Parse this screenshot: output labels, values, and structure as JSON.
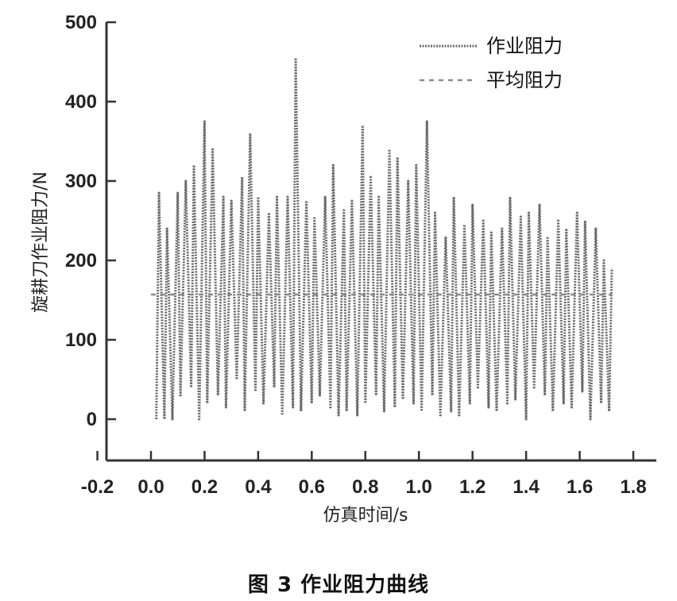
{
  "chart_data": {
    "type": "line",
    "xlabel": "仿真时间/s",
    "ylabel": "旋耕刀作业阻力/N",
    "xlim": [
      -0.2,
      1.9
    ],
    "ylim": [
      -50,
      500
    ],
    "x_ticks": [
      "-0.2",
      "0.0",
      "0.2",
      "0.4",
      "0.6",
      "0.8",
      "1.0",
      "1.2",
      "1.4",
      "1.6",
      "1.8"
    ],
    "x_tick_values": [
      -0.2,
      0.0,
      0.2,
      0.4,
      0.6,
      0.8,
      1.0,
      1.2,
      1.4,
      1.6,
      1.8
    ],
    "y_ticks": [
      "0",
      "100",
      "200",
      "300",
      "400",
      "500"
    ],
    "y_tick_values": [
      0,
      100,
      200,
      300,
      400,
      500
    ],
    "grid": false,
    "legend_position": "top-right",
    "series": [
      {
        "name": "作业阻力",
        "style": "solid-hatched",
        "x": [
          0.02,
          0.03,
          0.05,
          0.06,
          0.08,
          0.1,
          0.11,
          0.13,
          0.15,
          0.16,
          0.18,
          0.2,
          0.21,
          0.23,
          0.25,
          0.27,
          0.28,
          0.3,
          0.32,
          0.34,
          0.35,
          0.37,
          0.39,
          0.4,
          0.42,
          0.44,
          0.46,
          0.47,
          0.49,
          0.51,
          0.53,
          0.54,
          0.56,
          0.58,
          0.6,
          0.61,
          0.63,
          0.65,
          0.67,
          0.68,
          0.7,
          0.72,
          0.73,
          0.75,
          0.77,
          0.79,
          0.8,
          0.82,
          0.84,
          0.85,
          0.87,
          0.89,
          0.91,
          0.92,
          0.94,
          0.96,
          0.98,
          0.99,
          1.01,
          1.03,
          1.05,
          1.06,
          1.08,
          1.1,
          1.12,
          1.13,
          1.15,
          1.17,
          1.19,
          1.2,
          1.22,
          1.24,
          1.26,
          1.27,
          1.29,
          1.31,
          1.33,
          1.34,
          1.36,
          1.38,
          1.4,
          1.41,
          1.43,
          1.45,
          1.47,
          1.48,
          1.5,
          1.52,
          1.54,
          1.55,
          1.57,
          1.59,
          1.61,
          1.62,
          1.64,
          1.66,
          1.68,
          1.69,
          1.71,
          1.72
        ],
        "y": [
          0,
          285,
          0,
          240,
          0,
          285,
          30,
          300,
          40,
          320,
          0,
          375,
          20,
          340,
          30,
          280,
          15,
          275,
          50,
          305,
          10,
          360,
          35,
          280,
          20,
          260,
          40,
          280,
          5,
          280,
          15,
          455,
          10,
          275,
          20,
          255,
          30,
          280,
          15,
          320,
          5,
          265,
          10,
          275,
          5,
          370,
          20,
          305,
          30,
          280,
          10,
          340,
          15,
          330,
          25,
          300,
          20,
          320,
          10,
          375,
          30,
          260,
          5,
          230,
          10,
          280,
          5,
          245,
          20,
          270,
          40,
          250,
          15,
          235,
          10,
          240,
          20,
          280,
          25,
          255,
          0,
          260,
          40,
          270,
          30,
          230,
          10,
          250,
          20,
          240,
          15,
          260,
          35,
          250,
          0,
          240,
          20,
          200,
          10,
          190
        ]
      },
      {
        "name": "平均阻力",
        "style": "dashed",
        "x": [
          0.0,
          1.72
        ],
        "y": [
          157,
          157
        ]
      }
    ]
  },
  "caption": "图 3    作业阻力曲线",
  "colors": {
    "series_main": "#6a6a6a",
    "series_mean": "#8a8a8a",
    "axis": "#333333"
  }
}
